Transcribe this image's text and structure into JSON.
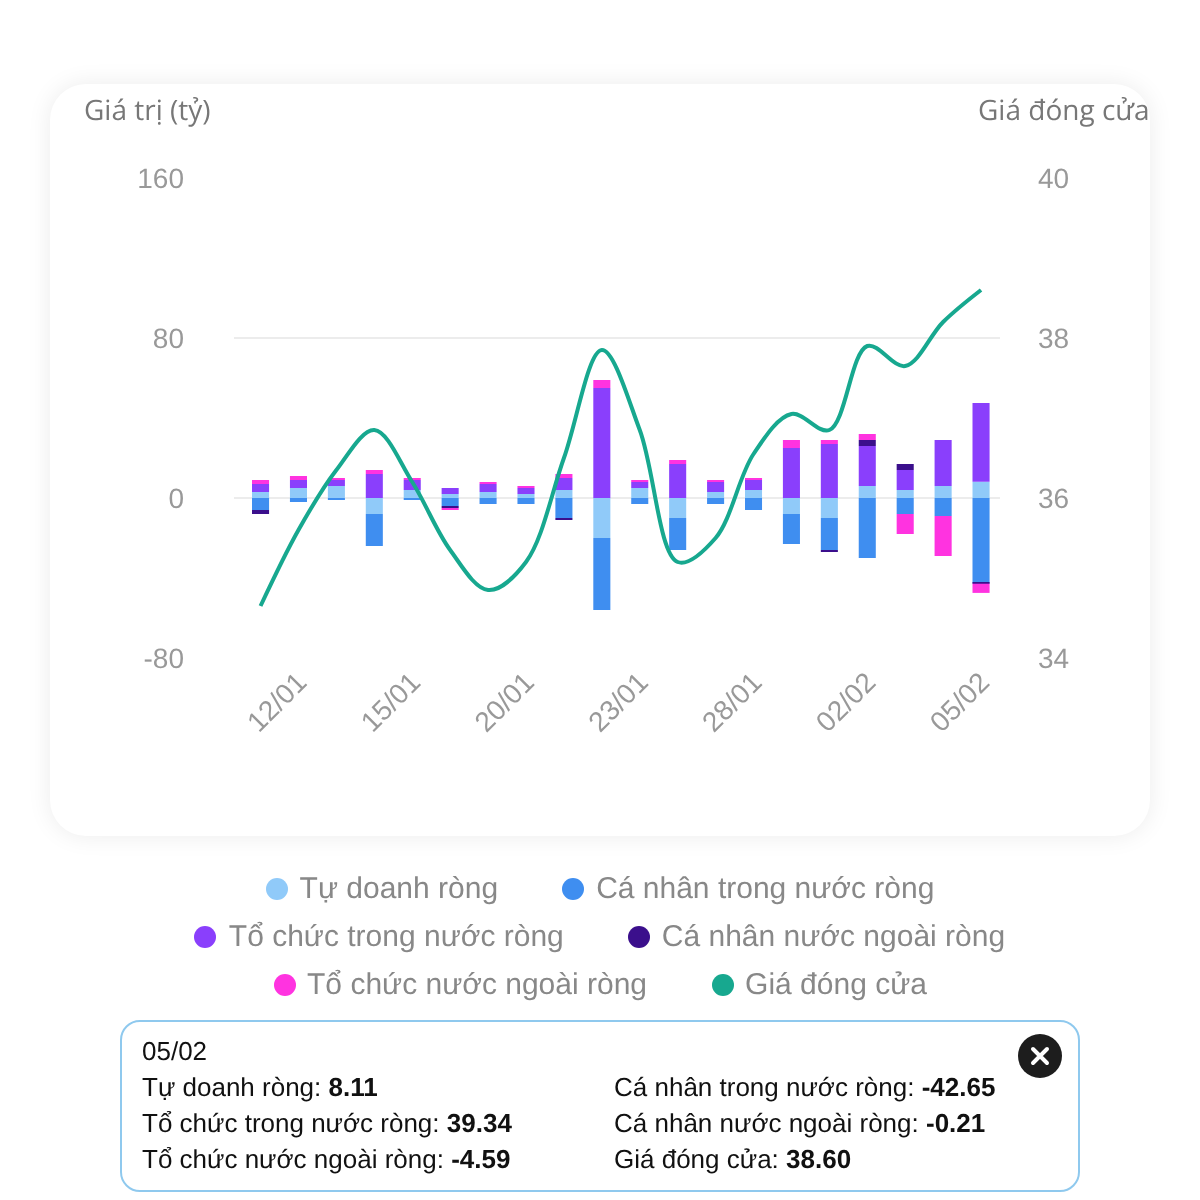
{
  "chart_data": {
    "type": "bar",
    "stacked": true,
    "ylabel": "Giá trị (tỷ)",
    "y2label": "Giá đóng cửa",
    "categories": [
      null,
      "12/01",
      null,
      null,
      "15/01",
      null,
      null,
      "20/01",
      null,
      null,
      "23/01",
      null,
      null,
      "28/01",
      null,
      null,
      "02/02",
      null,
      null,
      "05/02"
    ],
    "series": [
      {
        "name": "Tự doanh ròng",
        "color": "#90caf9",
        "values": [
          3,
          5,
          6,
          -8,
          4,
          2,
          3,
          2,
          4,
          -20,
          5,
          -10,
          3,
          4,
          -8,
          -10,
          6,
          4,
          6,
          8.11
        ]
      },
      {
        "name": "Cá nhân trong nước ròng",
        "color": "#3f8ef0",
        "values": [
          -6,
          -2,
          -1,
          -16,
          -1,
          -4,
          -3,
          -3,
          -10,
          -36,
          -3,
          -16,
          -3,
          -6,
          -15,
          -16,
          -30,
          -8,
          -9,
          -42.65
        ]
      },
      {
        "name": "Tổ chức trong nước ròng",
        "color": "#8a3ffc",
        "values": [
          4,
          4,
          3,
          12,
          5,
          3,
          4,
          3,
          6,
          55,
          3,
          17,
          5,
          5,
          25,
          27,
          20,
          10,
          23,
          39.34
        ]
      },
      {
        "name": "Cá nhân nước ngoài ròng",
        "color": "#3b0f8c",
        "values": [
          -2,
          0,
          0,
          0,
          0,
          -1,
          0,
          0,
          -1,
          0,
          0,
          0,
          0,
          0,
          0,
          -1,
          3,
          3,
          0,
          -0.21
        ]
      },
      {
        "name": "Tổ chức nước ngoài ròng",
        "color": "#ff33e0",
        "values": [
          2,
          2,
          1,
          2,
          1,
          -1,
          1,
          1,
          2,
          4,
          1,
          2,
          1,
          1,
          4,
          2,
          3,
          -10,
          -20,
          -4.59
        ]
      },
      {
        "name": "Giá đóng cửa",
        "type": "line",
        "axis": "y2",
        "color": "#17a88f",
        "values": [
          34.65,
          35.6,
          36.35,
          36.85,
          36.2,
          35.35,
          34.85,
          35.2,
          36.5,
          37.85,
          36.85,
          35.2,
          35.5,
          36.55,
          37.05,
          36.85,
          37.9,
          37.65,
          38.2,
          38.6
        ]
      }
    ],
    "ylim": [
      -80,
      160
    ],
    "yticks": [
      -80,
      0,
      80,
      160
    ],
    "y2lim": [
      34,
      40
    ],
    "y2ticks": [
      34,
      36,
      38,
      40
    ],
    "grid": "y",
    "legend": "bottom",
    "marker": "none",
    "annotations": [
      "05/02",
      "Tự doanh ròng: 8.11",
      "Cá nhân trong nước ròng: -42.65",
      "Tổ chức trong nước ròng: 39.34",
      "Cá nhân nước ngoài ròng: -0.21",
      "Tổ chức nước ngoài ròng: -4.59",
      "Giá đóng cửa: 38.60"
    ]
  }
}
